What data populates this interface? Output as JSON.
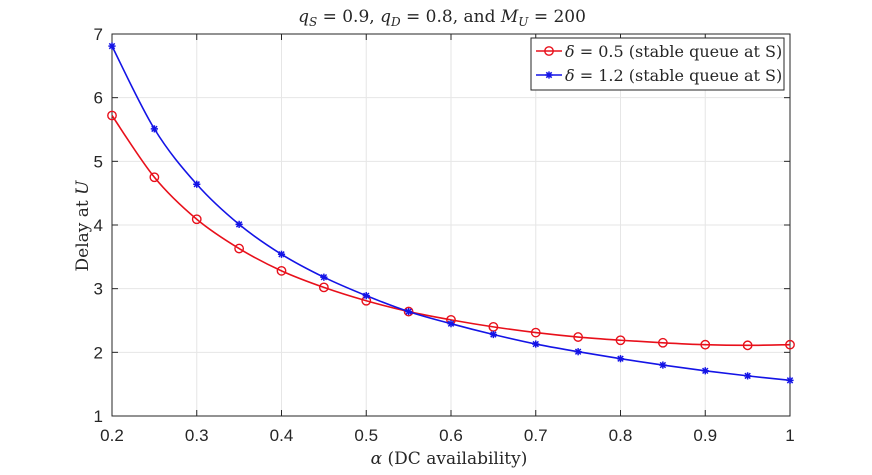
{
  "chart_data": {
    "type": "line",
    "title": "q_S = 0.9, q_D = 0.8, and M_U = 200",
    "title_parts": {
      "q_S": "q",
      "q_S_sub": "S",
      "q_S_eq": " = 0.9, ",
      "q_D": "q",
      "q_D_sub": "D",
      "q_D_eq": " = 0.8, and ",
      "M_U": "M",
      "M_U_sub": "U",
      "M_U_eq": " = 200"
    },
    "xlabel": "α (DC availability)",
    "xlabel_parts": {
      "sym": "α",
      "text": " (DC availability)"
    },
    "ylabel": "Delay at U",
    "ylabel_parts": {
      "text": "Delay at ",
      "sym": "U"
    },
    "xlim": [
      0.2,
      1
    ],
    "ylim": [
      1,
      7
    ],
    "xticks": [
      0.2,
      0.3,
      0.4,
      0.5,
      0.6,
      0.7,
      0.8,
      0.9,
      1
    ],
    "xtick_labels": [
      "0.2",
      "0.3",
      "0.4",
      "0.5",
      "0.6",
      "0.7",
      "0.8",
      "0.9",
      "1"
    ],
    "yticks": [
      1,
      2,
      3,
      4,
      5,
      6,
      7
    ],
    "ytick_labels": [
      "1",
      "2",
      "3",
      "4",
      "5",
      "6",
      "7"
    ],
    "grid": true,
    "legend_position": "top-right",
    "x": [
      0.2,
      0.25,
      0.3,
      0.35,
      0.4,
      0.45,
      0.5,
      0.55,
      0.6,
      0.65,
      0.7,
      0.75,
      0.8,
      0.85,
      0.9,
      0.95,
      1.0
    ],
    "series": [
      {
        "name": "δ = 0.5 (stable queue at S)",
        "legend_sym": "δ",
        "legend_text": " = 0.5 (stable queue at S)",
        "color": "#e8101b",
        "marker": "circle",
        "values": [
          5.72,
          4.75,
          4.09,
          3.63,
          3.28,
          3.02,
          2.81,
          2.64,
          2.51,
          2.4,
          2.31,
          2.24,
          2.19,
          2.15,
          2.12,
          2.11,
          2.12
        ]
      },
      {
        "name": "δ = 1.2 (stable queue at S)",
        "legend_sym": "δ",
        "legend_text": " = 1.2 (stable queue at S)",
        "color": "#1414e6",
        "marker": "star",
        "values": [
          6.81,
          5.51,
          4.64,
          4.01,
          3.54,
          3.18,
          2.89,
          2.64,
          2.45,
          2.28,
          2.13,
          2.01,
          1.9,
          1.8,
          1.71,
          1.63,
          1.56
        ]
      }
    ]
  }
}
